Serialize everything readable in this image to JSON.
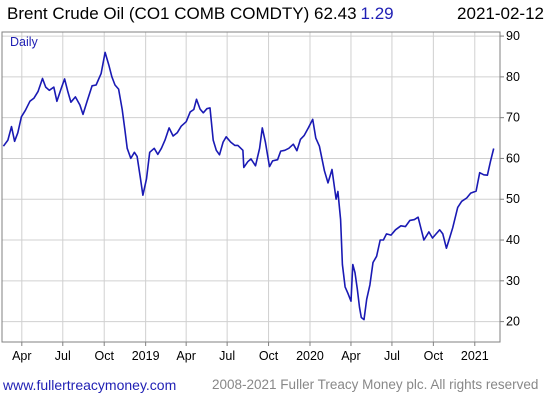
{
  "header": {
    "title": "Brent Crude Oil  (CO1 COMB COMDTY) 62.43",
    "change": "1.29",
    "date": "2021-02-12"
  },
  "footer": {
    "link": "www.fullertreacymoney.com",
    "copyright": "2008-2021 Fuller Treacy Money plc. All rights reserved"
  },
  "colors": {
    "line": "#1a1ab4",
    "grid": "#d0d0d0",
    "frame": "#808080"
  },
  "chart_data": {
    "type": "line",
    "frequency_label": "Daily",
    "yaxis_position": "right",
    "ylim": [
      15,
      91
    ],
    "yticks": [
      20,
      30,
      40,
      50,
      60,
      70,
      80,
      90
    ],
    "xlim": [
      "2018-02-16",
      "2021-02-26"
    ],
    "xticks": [
      {
        "date": "2018-04-01",
        "label": "Apr"
      },
      {
        "date": "2018-07-01",
        "label": "Jul"
      },
      {
        "date": "2018-10-01",
        "label": "Oct"
      },
      {
        "date": "2019-01-01",
        "label": "2019"
      },
      {
        "date": "2019-04-01",
        "label": "Apr"
      },
      {
        "date": "2019-07-01",
        "label": "Jul"
      },
      {
        "date": "2019-10-01",
        "label": "Oct"
      },
      {
        "date": "2020-01-01",
        "label": "2020"
      },
      {
        "date": "2020-04-01",
        "label": "Apr"
      },
      {
        "date": "2020-07-01",
        "label": "Jul"
      },
      {
        "date": "2020-10-01",
        "label": "Oct"
      },
      {
        "date": "2021-01-01",
        "label": "2021"
      }
    ],
    "grid": true,
    "series": [
      {
        "name": "",
        "points": [
          [
            "2018-02-19",
            63.0
          ],
          [
            "2018-03-01",
            64.5
          ],
          [
            "2018-03-09",
            67.8
          ],
          [
            "2018-03-16",
            64.2
          ],
          [
            "2018-03-23",
            66.3
          ],
          [
            "2018-03-31",
            70.2
          ],
          [
            "2018-04-09",
            71.8
          ],
          [
            "2018-04-19",
            74.0
          ],
          [
            "2018-04-28",
            74.8
          ],
          [
            "2018-05-07",
            76.4
          ],
          [
            "2018-05-17",
            79.6
          ],
          [
            "2018-05-24",
            77.5
          ],
          [
            "2018-06-01",
            76.7
          ],
          [
            "2018-06-11",
            77.5
          ],
          [
            "2018-06-18",
            74.0
          ],
          [
            "2018-06-28",
            77.3
          ],
          [
            "2018-07-05",
            79.5
          ],
          [
            "2018-07-12",
            76.5
          ],
          [
            "2018-07-19",
            73.8
          ],
          [
            "2018-07-29",
            75.1
          ],
          [
            "2018-08-08",
            73.1
          ],
          [
            "2018-08-15",
            70.8
          ],
          [
            "2018-08-24",
            74.0
          ],
          [
            "2018-09-04",
            77.8
          ],
          [
            "2018-09-13",
            78.0
          ],
          [
            "2018-09-24",
            80.8
          ],
          [
            "2018-10-03",
            86.0
          ],
          [
            "2018-10-11",
            83.0
          ],
          [
            "2018-10-18",
            80.0
          ],
          [
            "2018-10-25",
            78.0
          ],
          [
            "2018-11-02",
            77.0
          ],
          [
            "2018-11-10",
            72.0
          ],
          [
            "2018-11-16",
            67.0
          ],
          [
            "2018-11-21",
            62.5
          ],
          [
            "2018-11-29",
            60.0
          ],
          [
            "2018-12-07",
            61.5
          ],
          [
            "2018-12-13",
            60.5
          ],
          [
            "2018-12-20",
            55.5
          ],
          [
            "2018-12-26",
            51.0
          ],
          [
            "2019-01-03",
            55.0
          ],
          [
            "2019-01-10",
            61.5
          ],
          [
            "2019-01-20",
            62.5
          ],
          [
            "2019-01-28",
            61.0
          ],
          [
            "2019-02-05",
            62.5
          ],
          [
            "2019-02-13",
            64.5
          ],
          [
            "2019-02-22",
            67.5
          ],
          [
            "2019-03-03",
            65.5
          ],
          [
            "2019-03-12",
            66.3
          ],
          [
            "2019-03-21",
            67.9
          ],
          [
            "2019-04-01",
            69.0
          ],
          [
            "2019-04-10",
            71.4
          ],
          [
            "2019-04-18",
            72.0
          ],
          [
            "2019-04-24",
            74.5
          ],
          [
            "2019-05-02",
            72.1
          ],
          [
            "2019-05-09",
            71.2
          ],
          [
            "2019-05-17",
            72.2
          ],
          [
            "2019-05-24",
            72.4
          ],
          [
            "2019-05-31",
            64.5
          ],
          [
            "2019-06-07",
            62.0
          ],
          [
            "2019-06-14",
            60.9
          ],
          [
            "2019-06-22",
            64.0
          ],
          [
            "2019-06-29",
            65.3
          ],
          [
            "2019-07-09",
            64.0
          ],
          [
            "2019-07-18",
            63.2
          ],
          [
            "2019-07-25",
            63.2
          ],
          [
            "2019-08-05",
            62.0
          ],
          [
            "2019-08-07",
            57.8
          ],
          [
            "2019-08-16",
            59.2
          ],
          [
            "2019-08-23",
            59.9
          ],
          [
            "2019-09-02",
            58.2
          ],
          [
            "2019-09-11",
            62.5
          ],
          [
            "2019-09-17",
            67.5
          ],
          [
            "2019-09-24",
            64.0
          ],
          [
            "2019-10-03",
            58.0
          ],
          [
            "2019-10-10",
            59.4
          ],
          [
            "2019-10-21",
            59.7
          ],
          [
            "2019-10-28",
            61.8
          ],
          [
            "2019-11-06",
            62.0
          ],
          [
            "2019-11-15",
            62.5
          ],
          [
            "2019-11-25",
            63.5
          ],
          [
            "2019-12-03",
            61.9
          ],
          [
            "2019-12-11",
            64.7
          ],
          [
            "2019-12-19",
            65.6
          ],
          [
            "2019-12-29",
            67.6
          ],
          [
            "2020-01-07",
            69.6
          ],
          [
            "2020-01-14",
            65.0
          ],
          [
            "2020-01-22",
            63.0
          ],
          [
            "2020-02-02",
            57.0
          ],
          [
            "2020-02-10",
            54.0
          ],
          [
            "2020-02-19",
            57.3
          ],
          [
            "2020-02-28",
            50.0
          ],
          [
            "2020-03-03",
            51.9
          ],
          [
            "2020-03-09",
            45.0
          ],
          [
            "2020-03-13",
            34.0
          ],
          [
            "2020-03-19",
            28.5
          ],
          [
            "2020-03-25",
            27.0
          ],
          [
            "2020-04-01",
            25.0
          ],
          [
            "2020-04-05",
            34.0
          ],
          [
            "2020-04-10",
            32.0
          ],
          [
            "2020-04-15",
            28.0
          ],
          [
            "2020-04-20",
            23.5
          ],
          [
            "2020-04-24",
            21.0
          ],
          [
            "2020-04-30",
            20.5
          ],
          [
            "2020-05-06",
            25.5
          ],
          [
            "2020-05-13",
            29.0
          ],
          [
            "2020-05-20",
            34.5
          ],
          [
            "2020-05-28",
            36.0
          ],
          [
            "2020-06-05",
            40.0
          ],
          [
            "2020-06-12",
            40.0
          ],
          [
            "2020-06-19",
            41.5
          ],
          [
            "2020-06-29",
            41.2
          ],
          [
            "2020-07-09",
            42.5
          ],
          [
            "2020-07-21",
            43.5
          ],
          [
            "2020-07-31",
            43.3
          ],
          [
            "2020-08-10",
            44.8
          ],
          [
            "2020-08-20",
            45.0
          ],
          [
            "2020-08-28",
            45.6
          ],
          [
            "2020-09-03",
            43.0
          ],
          [
            "2020-09-10",
            40.0
          ],
          [
            "2020-09-21",
            42.0
          ],
          [
            "2020-09-29",
            40.5
          ],
          [
            "2020-10-07",
            41.5
          ],
          [
            "2020-10-15",
            42.5
          ],
          [
            "2020-10-22",
            41.5
          ],
          [
            "2020-10-30",
            38.0
          ],
          [
            "2020-11-06",
            40.5
          ],
          [
            "2020-11-13",
            43.0
          ],
          [
            "2020-11-24",
            48.0
          ],
          [
            "2020-12-03",
            49.5
          ],
          [
            "2020-12-14",
            50.3
          ],
          [
            "2020-12-23",
            51.5
          ],
          [
            "2021-01-04",
            52.0
          ],
          [
            "2021-01-12",
            56.5
          ],
          [
            "2021-01-21",
            56.0
          ],
          [
            "2021-01-29",
            55.9
          ],
          [
            "2021-02-05",
            59.3
          ],
          [
            "2021-02-12",
            62.43
          ]
        ]
      }
    ]
  }
}
